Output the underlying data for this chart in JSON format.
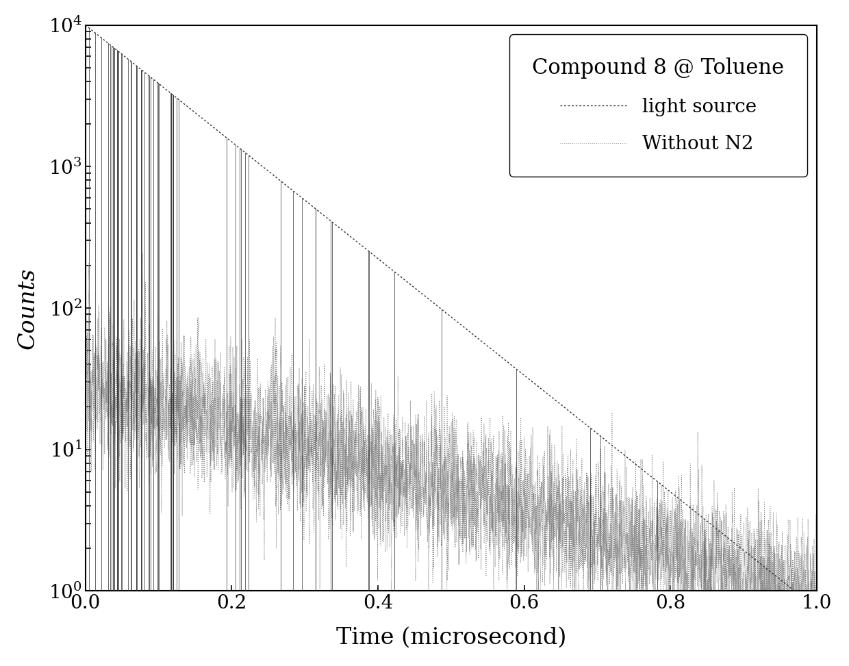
{
  "title": "Compound 8 @ Toluene",
  "xlabel": "Time (microsecond)",
  "ylabel": "Counts",
  "xlim": [
    0.0,
    1.0
  ],
  "ylim": [
    1.0,
    10000.0
  ],
  "legend_label_1": "light source",
  "legend_label_2": "Without N2",
  "xticks": [
    0.0,
    0.2,
    0.4,
    0.6,
    0.8,
    1.0
  ],
  "background_color": "#ffffff",
  "figure_facecolor": "#ffffff",
  "line1_color": "#333333",
  "line2_color": "#888888",
  "seed": 12345,
  "n_points": 5000,
  "light_source_peak": 10000,
  "light_source_decay": 9.5,
  "without_n2_peak": 30,
  "without_n2_decay": 3.5,
  "title_fontsize": 22,
  "label_fontsize": 24,
  "tick_fontsize": 20,
  "legend_fontsize": 20
}
